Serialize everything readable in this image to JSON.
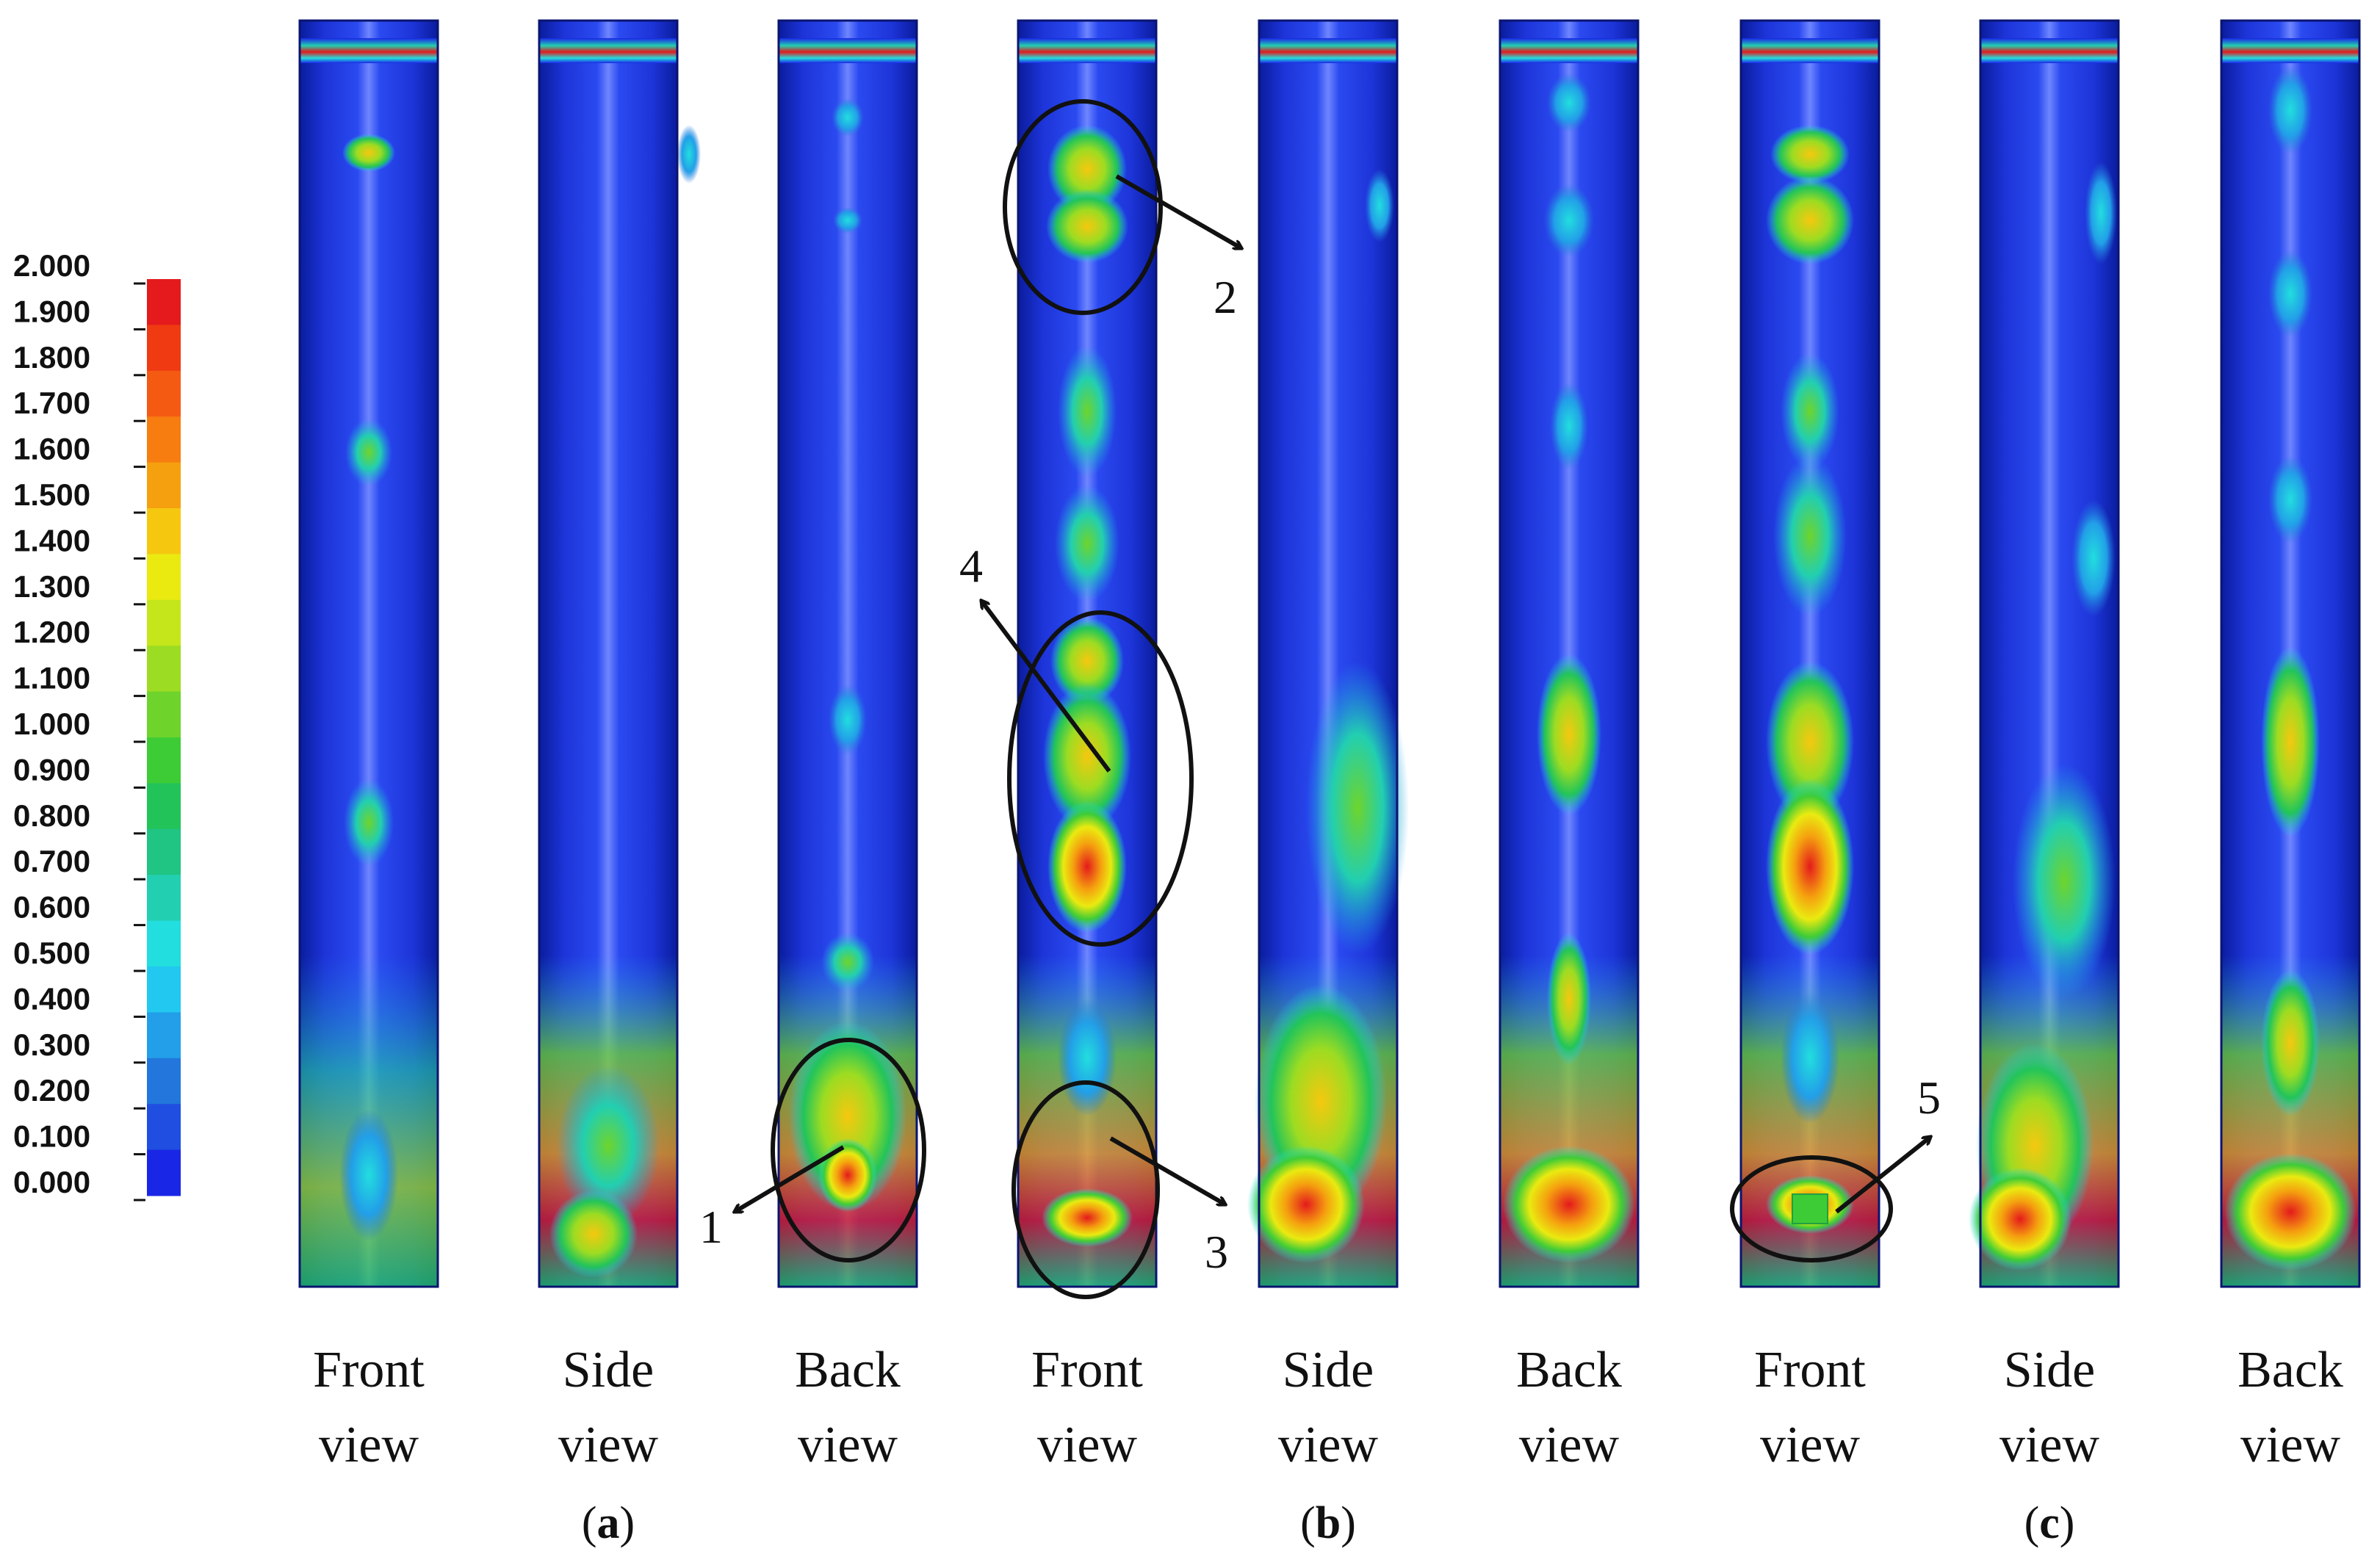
{
  "legend": {
    "ticks": [
      "2.000",
      "1.900",
      "1.800",
      "1.700",
      "1.600",
      "1.500",
      "1.400",
      "1.300",
      "1.200",
      "1.100",
      "1.000",
      "0.900",
      "0.800",
      "0.700",
      "0.600",
      "0.500",
      "0.400",
      "0.300",
      "0.200",
      "0.100",
      "0.000"
    ],
    "colors": [
      "#e41a1c",
      "#f03a12",
      "#f55a12",
      "#f77d10",
      "#f5a00f",
      "#f5c80f",
      "#eaea10",
      "#c5e61a",
      "#9cdc22",
      "#6ed42c",
      "#3ecc36",
      "#22c45a",
      "#20c483",
      "#22cfb0",
      "#22dede",
      "#22c8f0",
      "#229fe8",
      "#2276dc",
      "#1f4ee0",
      "#1a26e6"
    ]
  },
  "columns": [
    {
      "line1": "Front",
      "line2": "view"
    },
    {
      "line1": "Side",
      "line2": "view"
    },
    {
      "line1": "Back",
      "line2": "view"
    },
    {
      "line1": "Front",
      "line2": "view"
    },
    {
      "line1": "Side",
      "line2": "view"
    },
    {
      "line1": "Back",
      "line2": "view"
    },
    {
      "line1": "Front",
      "line2": "view"
    },
    {
      "line1": "Side",
      "line2": "view"
    },
    {
      "line1": "Back",
      "line2": "view"
    }
  ],
  "groups": [
    {
      "open": "(",
      "letter": "a",
      "close": ")"
    },
    {
      "open": "(",
      "letter": "b",
      "close": ")"
    },
    {
      "open": "(",
      "letter": "c",
      "close": ")"
    }
  ],
  "annotations": [
    "1",
    "2",
    "3",
    "4",
    "5"
  ]
}
